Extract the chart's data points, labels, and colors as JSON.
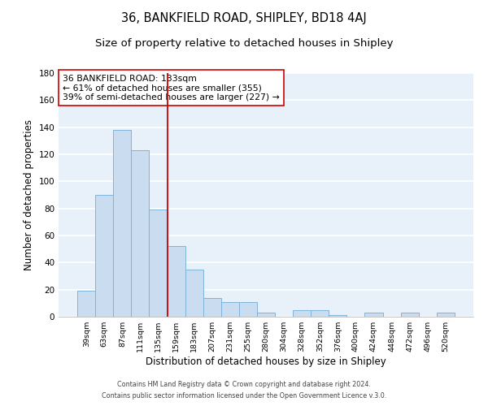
{
  "title": "36, BANKFIELD ROAD, SHIPLEY, BD18 4AJ",
  "subtitle": "Size of property relative to detached houses in Shipley",
  "xlabel": "Distribution of detached houses by size in Shipley",
  "ylabel": "Number of detached properties",
  "bar_labels": [
    "39sqm",
    "63sqm",
    "87sqm",
    "111sqm",
    "135sqm",
    "159sqm",
    "183sqm",
    "207sqm",
    "231sqm",
    "255sqm",
    "280sqm",
    "304sqm",
    "328sqm",
    "352sqm",
    "376sqm",
    "400sqm",
    "424sqm",
    "448sqm",
    "472sqm",
    "496sqm",
    "520sqm"
  ],
  "bar_values": [
    19,
    90,
    138,
    123,
    79,
    52,
    35,
    14,
    11,
    11,
    3,
    0,
    5,
    5,
    1,
    0,
    3,
    0,
    3,
    0,
    3
  ],
  "bar_color": "#c9dcf0",
  "bar_edge_color": "#7fb3d9",
  "vline_color": "#cc0000",
  "annotation_text": "36 BANKFIELD ROAD: 133sqm\n← 61% of detached houses are smaller (355)\n39% of semi-detached houses are larger (227) →",
  "ylim": [
    0,
    180
  ],
  "yticks": [
    0,
    20,
    40,
    60,
    80,
    100,
    120,
    140,
    160,
    180
  ],
  "bg_color": "#e8f0fa",
  "grid_color": "#ffffff",
  "footer_line1": "Contains HM Land Registry data © Crown copyright and database right 2024.",
  "footer_line2": "Contains public sector information licensed under the Open Government Licence v.3.0.",
  "title_fontsize": 10.5,
  "subtitle_fontsize": 9.5,
  "xlabel_fontsize": 8.5,
  "ylabel_fontsize": 8.5
}
